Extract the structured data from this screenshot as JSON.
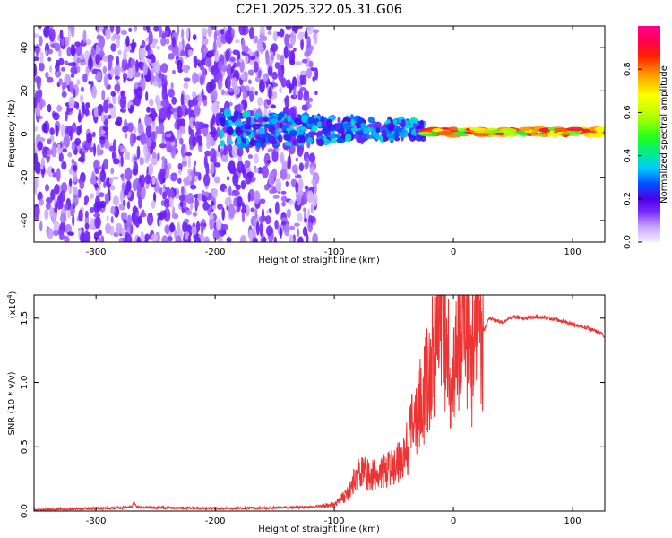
{
  "title": "C2E1.2025.322.05.31.G06",
  "chart_data": [
    {
      "type": "heatmap",
      "xlabel": "Height of straight line (km)",
      "ylabel": "Frequency (Hz)",
      "xlim": [
        -352,
        127
      ],
      "ylim": [
        -50,
        50
      ],
      "x_ticks": [
        -300,
        -200,
        -100,
        0,
        100
      ],
      "y_ticks": [
        -40,
        -20,
        0,
        20,
        40
      ],
      "colorbar": {
        "label": "Normalized spectral amplitude",
        "range": [
          0,
          1
        ],
        "ticks": [
          0.0,
          0.2,
          0.4,
          0.6,
          0.8
        ],
        "colors": [
          "#f4eefe",
          "#c9a6ff",
          "#7a2cff",
          "#4b00e8",
          "#0050ff",
          "#00c8ff",
          "#00e8a0",
          "#20ff20",
          "#b0ff00",
          "#ffff00",
          "#ffa000",
          "#ff2000",
          "#ff0050",
          "#ff0090"
        ]
      },
      "features": [
        {
          "x_range": [
            -352,
            -115
          ],
          "description": "broadband low-amplitude scatter",
          "amplitude": [
            0.05,
            0.2
          ]
        },
        {
          "x_range": [
            -195,
            -25
          ],
          "center_freq": 2,
          "amplitude": [
            0.15,
            0.45
          ]
        },
        {
          "x_range": [
            -25,
            127
          ],
          "center_freq": 1,
          "amplitude": [
            0.5,
            0.95
          ]
        }
      ]
    },
    {
      "type": "line",
      "xlabel": "Height of straight line (km)",
      "ylabel": "SNR (10 * v/v)",
      "yscale_label": "(x10",
      "yscale_exp": "4",
      "xlim": [
        -352,
        127
      ],
      "ylim": [
        0,
        1.68
      ],
      "x_ticks": [
        -300,
        -200,
        -100,
        0,
        100
      ],
      "y_ticks": [
        "0.0",
        "0.5",
        "1.0",
        "1.5"
      ],
      "color": "#ee3333",
      "series": [
        {
          "x": [
            -352,
            -300,
            -270,
            -268,
            -266,
            -200,
            -120,
            -100,
            -90,
            -80,
            -70,
            -60,
            -50,
            -40,
            -30,
            -25,
            -20,
            -15,
            -10,
            -5,
            0,
            5,
            10,
            15,
            20,
            25,
            30,
            40,
            50,
            60,
            70,
            80,
            90,
            100,
            110,
            120,
            127
          ],
          "y": [
            0.01,
            0.02,
            0.03,
            0.07,
            0.03,
            0.02,
            0.03,
            0.05,
            0.12,
            0.3,
            0.28,
            0.3,
            0.35,
            0.45,
            0.8,
            0.9,
            1.05,
            1.35,
            1.5,
            1.2,
            0.95,
            1.35,
            1.55,
            1.15,
            1.5,
            1.4,
            1.5,
            1.47,
            1.51,
            1.5,
            1.51,
            1.5,
            1.48,
            1.45,
            1.43,
            1.4,
            1.36
          ]
        }
      ]
    }
  ]
}
